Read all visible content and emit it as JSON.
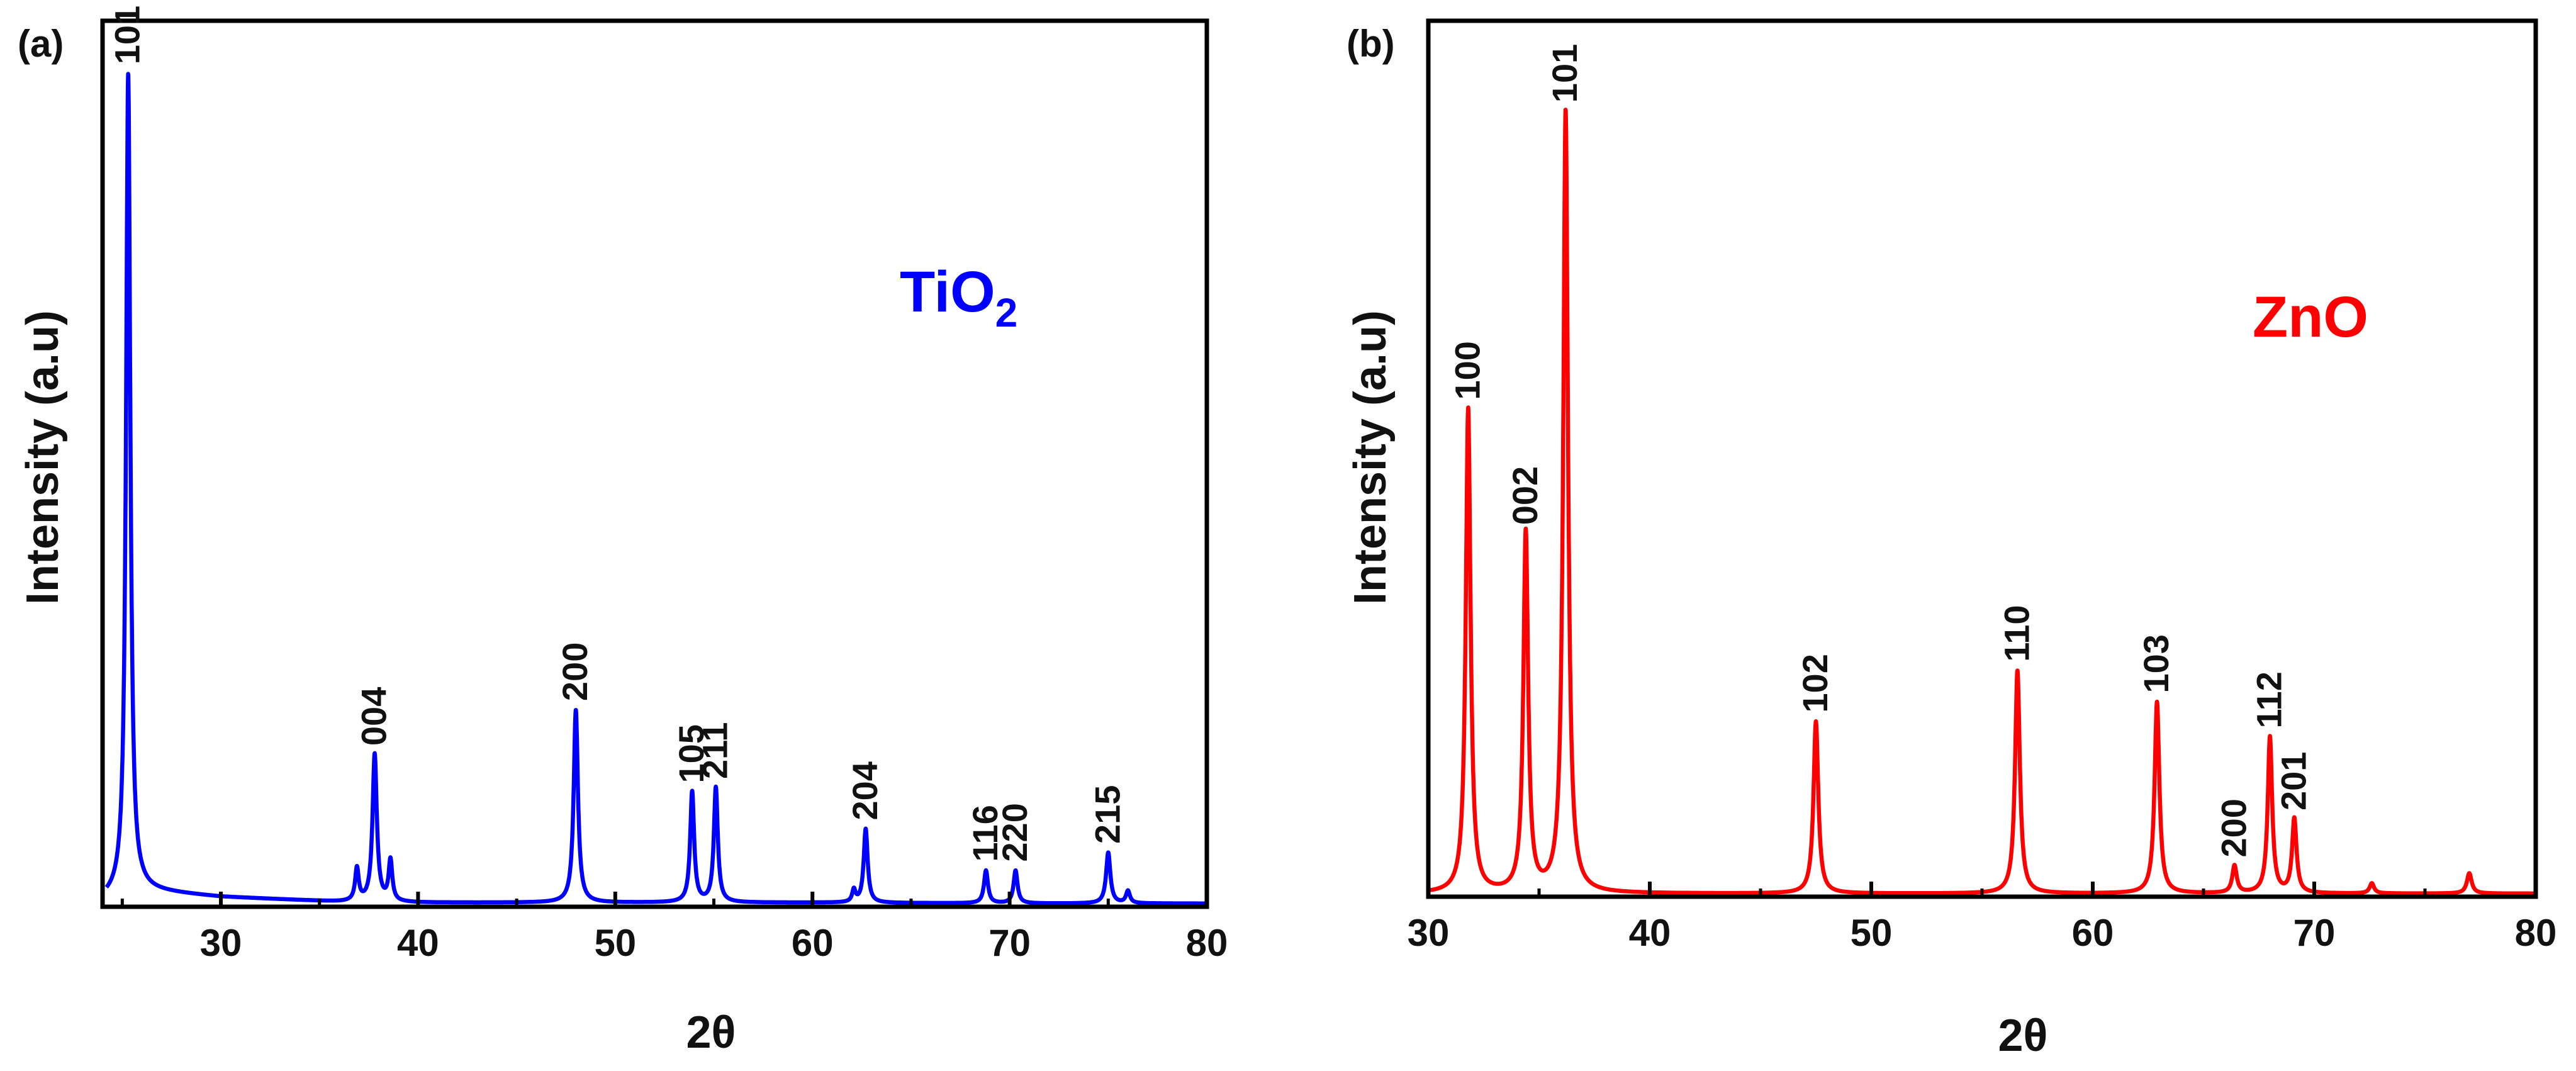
{
  "chart_data": [
    {
      "type": "line",
      "panel_label": "(a)",
      "sample_label": "TiO",
      "sample_subscript": "2",
      "color": "#0000FF",
      "xlabel": "2θ",
      "ylabel": "Intensity (a.u)",
      "xlim": [
        24,
        80
      ],
      "ylim": [
        0,
        1.08
      ],
      "xticks": [
        30,
        40,
        50,
        60,
        70,
        80
      ],
      "yticks_shown": false,
      "baseline": {
        "x": [
          24.2,
          26,
          30,
          36,
          40,
          50,
          60,
          70,
          80
        ],
        "y": [
          0.01,
          0.02,
          0.012,
          0.006,
          0.005,
          0.005,
          0.005,
          0.004,
          0.004
        ]
      },
      "peaks": [
        {
          "x": 25.3,
          "y": 1.0,
          "w": 0.13,
          "label": "101"
        },
        {
          "x": 36.9,
          "y": 0.04,
          "w": 0.11,
          "label": ""
        },
        {
          "x": 37.8,
          "y": 0.18,
          "w": 0.13,
          "label": "004"
        },
        {
          "x": 38.6,
          "y": 0.05,
          "w": 0.11,
          "label": ""
        },
        {
          "x": 48.0,
          "y": 0.235,
          "w": 0.13,
          "label": "200"
        },
        {
          "x": 53.9,
          "y": 0.135,
          "w": 0.12,
          "label": "105"
        },
        {
          "x": 55.1,
          "y": 0.14,
          "w": 0.12,
          "label": "211"
        },
        {
          "x": 62.1,
          "y": 0.015,
          "w": 0.1,
          "label": ""
        },
        {
          "x": 62.7,
          "y": 0.09,
          "w": 0.12,
          "label": "204"
        },
        {
          "x": 68.8,
          "y": 0.04,
          "w": 0.12,
          "label": "116"
        },
        {
          "x": 70.3,
          "y": 0.04,
          "w": 0.12,
          "label": "220"
        },
        {
          "x": 75.0,
          "y": 0.062,
          "w": 0.13,
          "label": "215"
        },
        {
          "x": 76.0,
          "y": 0.015,
          "w": 0.12,
          "label": ""
        }
      ]
    },
    {
      "type": "line",
      "panel_label": "(b)",
      "sample_label": "ZnO",
      "sample_subscript": "",
      "color": "#FF0000",
      "xlabel": "2θ",
      "ylabel": "Intensity (a.u)",
      "xlim": [
        30,
        80
      ],
      "ylim": [
        0,
        1.12
      ],
      "xticks": [
        30,
        40,
        50,
        60,
        70,
        80
      ],
      "yticks_shown": false,
      "baseline": {
        "x": [
          30,
          40,
          50,
          60,
          70,
          80
        ],
        "y": [
          0.004,
          0.004,
          0.004,
          0.004,
          0.004,
          0.004
        ]
      },
      "peaks": [
        {
          "x": 31.8,
          "y": 0.62,
          "w": 0.13,
          "label": "100"
        },
        {
          "x": 34.4,
          "y": 0.46,
          "w": 0.13,
          "label": "002"
        },
        {
          "x": 36.2,
          "y": 1.0,
          "w": 0.13,
          "label": "101"
        },
        {
          "x": 47.5,
          "y": 0.22,
          "w": 0.13,
          "label": "102"
        },
        {
          "x": 56.6,
          "y": 0.285,
          "w": 0.13,
          "label": "110"
        },
        {
          "x": 62.9,
          "y": 0.245,
          "w": 0.13,
          "label": "103"
        },
        {
          "x": 66.4,
          "y": 0.035,
          "w": 0.12,
          "label": "200"
        },
        {
          "x": 68.0,
          "y": 0.2,
          "w": 0.12,
          "label": "112"
        },
        {
          "x": 69.1,
          "y": 0.095,
          "w": 0.12,
          "label": "201"
        },
        {
          "x": 72.6,
          "y": 0.013,
          "w": 0.12,
          "label": ""
        },
        {
          "x": 77.0,
          "y": 0.026,
          "w": 0.13,
          "label": ""
        }
      ]
    }
  ]
}
